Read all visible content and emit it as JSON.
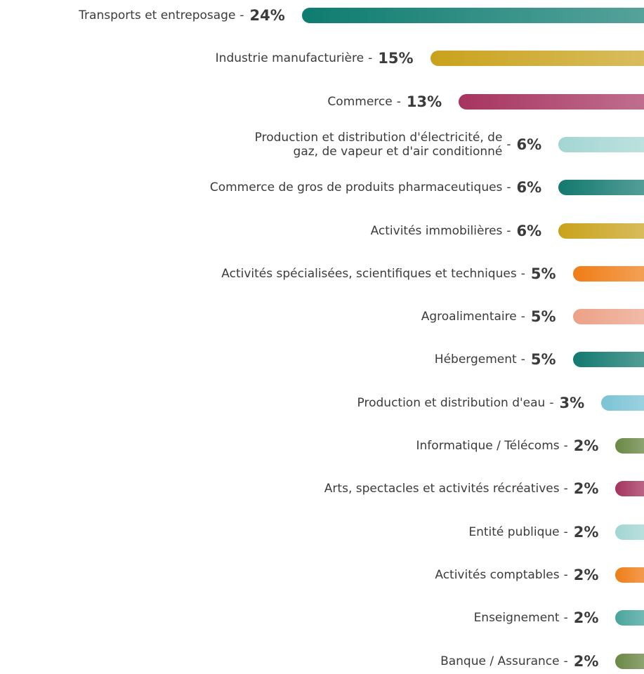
{
  "chart_data": {
    "type": "bar",
    "orientation": "horizontal",
    "separator": "-",
    "categories": [
      "Transports et entreposage",
      "Industrie manufacturière",
      "Commerce",
      "Production et distribution d'électricité, de\ngaz, de vapeur et d'air conditionné",
      "Commerce de gros de produits pharmaceutiques",
      "Activités immobilières",
      "Activités spécialisées, scientifiques et techniques",
      "Agroalimentaire",
      "Hébergement",
      "Production et distribution d'eau",
      "Informatique / Télécoms",
      "Arts, spectacles et activités récréatives",
      "Entité publique",
      "Activités comptables",
      "Enseignement",
      "Banque / Assurance"
    ],
    "values": [
      24,
      15,
      13,
      6,
      6,
      6,
      5,
      5,
      5,
      3,
      2,
      2,
      2,
      2,
      2,
      2
    ],
    "value_labels": [
      "24%",
      "15%",
      "13%",
      "6%",
      "6%",
      "6%",
      "5%",
      "5%",
      "5%",
      "3%",
      "2%",
      "2%",
      "2%",
      "2%",
      "2%",
      "2%"
    ],
    "colors": [
      "#0e7c70",
      "#c9a21c",
      "#a6345f",
      "#a3d6d3",
      "#12796f",
      "#c9a21c",
      "#ef7d16",
      "#eca186",
      "#12796f",
      "#7ac3d5",
      "#6a8845",
      "#a6345f",
      "#a3d6d3",
      "#ef7d16",
      "#48a59d",
      "#6a8845"
    ]
  }
}
